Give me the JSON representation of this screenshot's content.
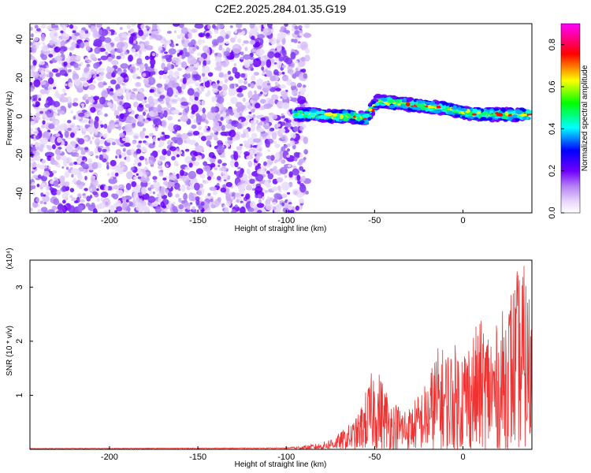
{
  "title": "C2E2.2025.284.01.35.G19",
  "chart_data": [
    {
      "type": "heatmap",
      "xlabel": "Height of straight line (km)",
      "ylabel": "Frequency (Hz)",
      "xlim": [
        -245,
        39
      ],
      "ylim": [
        -50,
        48
      ],
      "xticks": [
        -200,
        -150,
        -100,
        -50,
        0
      ],
      "yticks": [
        -40,
        -20,
        0,
        20,
        40
      ],
      "colorbar": {
        "label": "Normalized spectral amplitude",
        "range": [
          0,
          0.9
        ],
        "ticks": [
          0.0,
          0.2,
          0.4,
          0.6,
          0.8
        ],
        "colors": [
          "#ffffff",
          "#c7a3f7",
          "#7000ff",
          "#0000ff",
          "#00ffff",
          "#00ff00",
          "#ffff00",
          "#ff0000",
          "#ff00ff"
        ]
      },
      "noise_region": {
        "x": [
          -245,
          -88
        ],
        "y": [
          -50,
          48
        ]
      },
      "signal_track": [
        {
          "x": -95,
          "f": 1
        },
        {
          "x": -85,
          "f": 1
        },
        {
          "x": -75,
          "f": 0
        },
        {
          "x": -65,
          "f": 0
        },
        {
          "x": -55,
          "f": -1
        },
        {
          "x": -48,
          "f": 8
        },
        {
          "x": -40,
          "f": 7
        },
        {
          "x": -30,
          "f": 6
        },
        {
          "x": -20,
          "f": 5
        },
        {
          "x": -10,
          "f": 4
        },
        {
          "x": 0,
          "f": 2
        },
        {
          "x": 10,
          "f": 1
        },
        {
          "x": 20,
          "f": 1
        },
        {
          "x": 30,
          "f": 1
        },
        {
          "x": 38,
          "f": 1
        }
      ]
    },
    {
      "type": "line",
      "xlabel": "Height of straight line (km)",
      "ylabel": "SNR (10 * v/v)",
      "ymultiplier": "(x10⁴)",
      "xlim": [
        -245,
        39
      ],
      "ylim": [
        0,
        3.5
      ],
      "xticks": [
        -200,
        -150,
        -100,
        -50,
        0
      ],
      "yticks": [
        1,
        2,
        3
      ],
      "color": "#ee3333",
      "envelope": [
        {
          "x": -245,
          "y": 0.02
        },
        {
          "x": -100,
          "y": 0.03
        },
        {
          "x": -80,
          "y": 0.12
        },
        {
          "x": -70,
          "y": 0.3
        },
        {
          "x": -60,
          "y": 0.6
        },
        {
          "x": -55,
          "y": 1.1
        },
        {
          "x": -50,
          "y": 1.6
        },
        {
          "x": -45,
          "y": 1.3
        },
        {
          "x": -40,
          "y": 0.9
        },
        {
          "x": -30,
          "y": 0.8
        },
        {
          "x": -20,
          "y": 1.3
        },
        {
          "x": -15,
          "y": 1.9
        },
        {
          "x": -10,
          "y": 1.9
        },
        {
          "x": 0,
          "y": 2.0
        },
        {
          "x": 10,
          "y": 2.4
        },
        {
          "x": 20,
          "y": 2.3
        },
        {
          "x": 25,
          "y": 2.9
        },
        {
          "x": 30,
          "y": 3.3
        },
        {
          "x": 34,
          "y": 3.5
        },
        {
          "x": 39,
          "y": 2.8
        }
      ]
    }
  ]
}
